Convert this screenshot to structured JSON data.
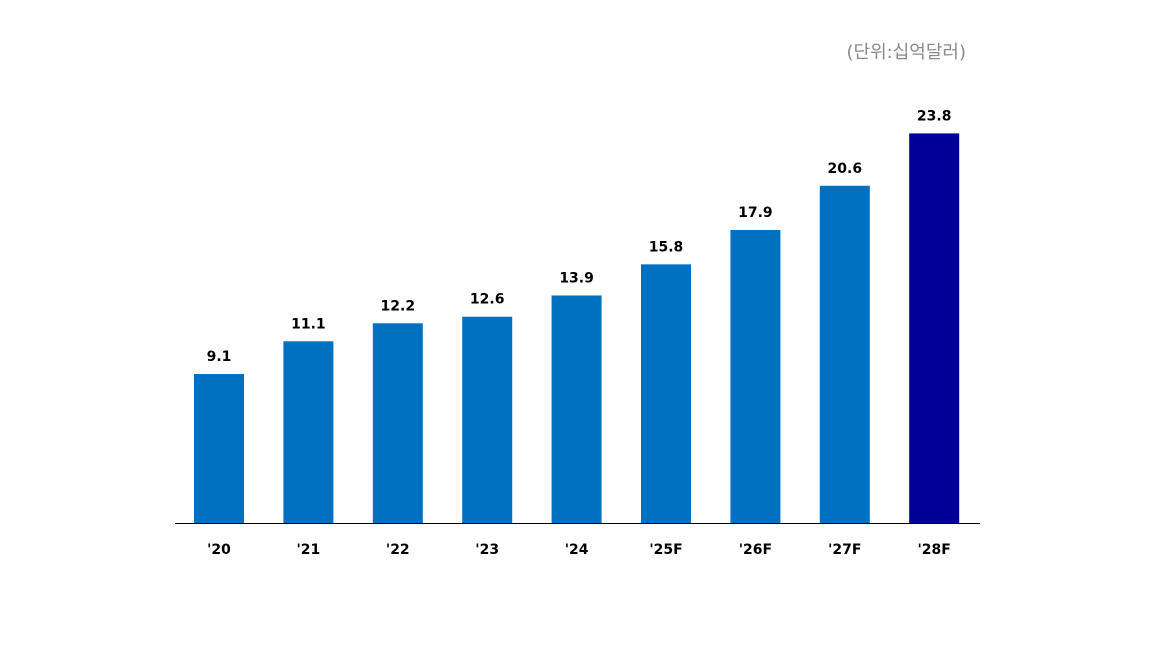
{
  "chart_data": {
    "type": "bar",
    "unit_label": "(단위:십억달러)",
    "categories": [
      "'20",
      "'21",
      "'22",
      "'23",
      "'24",
      "'25F",
      "'26F",
      "'27F",
      "'28F"
    ],
    "values": [
      9.1,
      11.1,
      12.2,
      12.6,
      13.9,
      15.8,
      17.9,
      20.6,
      23.8
    ],
    "data_labels": [
      "9.1",
      "11.1",
      "12.2",
      "12.6",
      "13.9",
      "15.8",
      "17.9",
      "20.6",
      "23.8"
    ],
    "ylim": [
      0,
      25
    ],
    "grid": false,
    "legend": "none",
    "colors": {
      "actual_and_forecast": "#0070C0",
      "highlight": "#000099",
      "axis": "#000000",
      "unit_text": "#8a8a8a"
    },
    "highlight_index": 8
  }
}
